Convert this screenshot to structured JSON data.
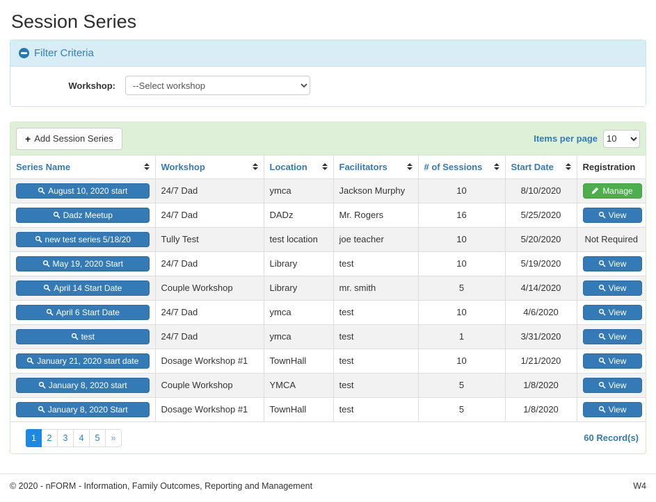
{
  "page": {
    "title": "Session Series"
  },
  "filter": {
    "title": "Filter Criteria",
    "workshop_label": "Workshop:",
    "workshop_selected": "--Select workshop"
  },
  "toolbar": {
    "add_button_label": "Add Session Series",
    "add_button_icon": "plus",
    "items_per_page_label": "Items per page",
    "items_per_page_value": "10"
  },
  "table": {
    "columns": [
      {
        "label": "Series Name",
        "sortable": true
      },
      {
        "label": "Workshop",
        "sortable": true
      },
      {
        "label": "Location",
        "sortable": true
      },
      {
        "label": "Facilitators",
        "sortable": true
      },
      {
        "label": "# of Sessions",
        "sortable": true
      },
      {
        "label": "Start Date",
        "sortable": true
      },
      {
        "label": "Registration",
        "sortable": false
      }
    ],
    "rows": [
      {
        "series_name": "August 10, 2020 start",
        "workshop": "24/7 Dad",
        "location": "ymca",
        "facilitators": "Jackson Murphy",
        "sessions": "10",
        "start_date": "8/10/2020",
        "registration": {
          "type": "manage",
          "label": "Manage"
        }
      },
      {
        "series_name": "Dadz Meetup",
        "workshop": "24/7 Dad",
        "location": "DADz",
        "facilitators": "Mr. Rogers",
        "sessions": "16",
        "start_date": "5/25/2020",
        "registration": {
          "type": "view",
          "label": "View"
        }
      },
      {
        "series_name": "new test series 5/18/20",
        "workshop": "Tully Test",
        "location": "test location",
        "facilitators": "joe teacher",
        "sessions": "10",
        "start_date": "5/20/2020",
        "registration": {
          "type": "text",
          "label": "Not Required"
        }
      },
      {
        "series_name": "May 19, 2020 Start",
        "workshop": "24/7 Dad",
        "location": "Library",
        "facilitators": "test",
        "sessions": "10",
        "start_date": "5/19/2020",
        "registration": {
          "type": "view",
          "label": "View"
        }
      },
      {
        "series_name": "April 14 Start Date",
        "workshop": "Couple Workshop",
        "location": "Library",
        "facilitators": "mr. smith",
        "sessions": "5",
        "start_date": "4/14/2020",
        "registration": {
          "type": "view",
          "label": "View"
        }
      },
      {
        "series_name": "April 6 Start Date",
        "workshop": "24/7 Dad",
        "location": "ymca",
        "facilitators": "test",
        "sessions": "10",
        "start_date": "4/6/2020",
        "registration": {
          "type": "view",
          "label": "View"
        }
      },
      {
        "series_name": "test",
        "workshop": "24/7 Dad",
        "location": "ymca",
        "facilitators": "test",
        "sessions": "1",
        "start_date": "3/31/2020",
        "registration": {
          "type": "view",
          "label": "View"
        }
      },
      {
        "series_name": "January 21, 2020 start date",
        "workshop": "Dosage Workshop #1",
        "location": "TownHall",
        "facilitators": "test",
        "sessions": "10",
        "start_date": "1/21/2020",
        "registration": {
          "type": "view",
          "label": "View"
        }
      },
      {
        "series_name": "January 8, 2020 start",
        "workshop": "Couple Workshop",
        "location": "YMCA",
        "facilitators": "test",
        "sessions": "5",
        "start_date": "1/8/2020",
        "registration": {
          "type": "view",
          "label": "View"
        }
      },
      {
        "series_name": "January 8, 2020 Start",
        "workshop": "Dosage Workshop #1",
        "location": "TownHall",
        "facilitators": "test",
        "sessions": "5",
        "start_date": "1/8/2020",
        "registration": {
          "type": "view",
          "label": "View"
        }
      }
    ]
  },
  "pagination": {
    "pages": [
      "1",
      "2",
      "3",
      "4",
      "5"
    ],
    "active_page": "1",
    "next_label": "»",
    "record_count": "60 Record(s)"
  },
  "footer": {
    "copyright": "© 2020 - nFORM - Information, Family Outcomes, Reporting and Management",
    "environment": "W4"
  },
  "colors": {
    "accent_blue": "#337ab7",
    "button_border_blue": "#2e6da4",
    "manage_green": "#4cae4c",
    "filter_heading_bg": "#d9edf7",
    "filter_border": "#bce8f1",
    "filter_heading_text": "#3080c0",
    "toolbar_bg": "#dff0d8",
    "toolbar_border": "#d6e9c6",
    "row_stripe": "#f2f2f2",
    "active_page_blue": "#1e88e5"
  }
}
